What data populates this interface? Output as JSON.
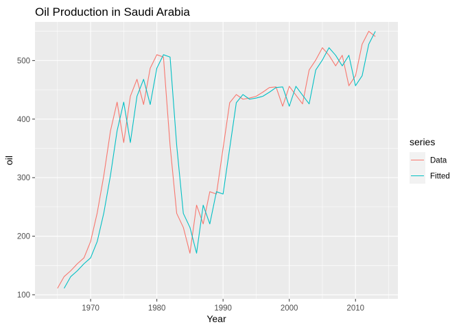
{
  "chart_data": {
    "type": "line",
    "title": "Oil Production in Saudi Arabia",
    "xlabel": "Year",
    "ylabel": "oil",
    "xlim": [
      1961.6,
      2016.4
    ],
    "ylim": [
      93,
      566
    ],
    "x_ticks": [
      1970,
      1980,
      1990,
      2000,
      2010
    ],
    "y_ticks": [
      100,
      200,
      300,
      400,
      500
    ],
    "grid": true,
    "legend": {
      "title": "series",
      "position": "right"
    },
    "series": [
      {
        "name": "Data",
        "color": "#f8766d",
        "x": [
          1965,
          1966,
          1967,
          1968,
          1969,
          1970,
          1971,
          1972,
          1973,
          1974,
          1975,
          1976,
          1977,
          1978,
          1979,
          1980,
          1981,
          1982,
          1983,
          1984,
          1985,
          1986,
          1987,
          1988,
          1989,
          1990,
          1991,
          1992,
          1993,
          1994,
          1995,
          1996,
          1997,
          1998,
          1999,
          2000,
          2001,
          2002,
          2003,
          2004,
          2005,
          2006,
          2007,
          2008,
          2009,
          2010,
          2011,
          2012,
          2013
        ],
        "values": [
          111,
          131,
          141,
          153,
          163,
          191,
          240,
          304,
          380,
          429,
          360,
          439,
          468,
          425,
          487,
          510,
          506,
          355,
          239,
          215,
          171,
          253,
          221,
          276,
          272,
          350,
          428,
          442,
          434,
          436,
          439,
          446,
          454,
          455,
          422,
          456,
          441,
          426,
          484,
          501,
          522,
          509,
          491,
          509,
          457,
          474,
          528,
          550,
          541
        ]
      },
      {
        "name": "Fitted",
        "color": "#00bfc4",
        "x": [
          1966,
          1967,
          1968,
          1969,
          1970,
          1971,
          1972,
          1973,
          1974,
          1975,
          1976,
          1977,
          1978,
          1979,
          1980,
          1981,
          1982,
          1983,
          1984,
          1985,
          1986,
          1987,
          1988,
          1989,
          1990,
          1991,
          1992,
          1993,
          1994,
          1995,
          1996,
          1997,
          1998,
          1999,
          2000,
          2001,
          2002,
          2003,
          2004,
          2005,
          2006,
          2007,
          2008,
          2009,
          2010,
          2011,
          2012,
          2013
        ],
        "values": [
          111,
          131,
          141,
          153,
          163,
          191,
          240,
          304,
          380,
          429,
          360,
          439,
          468,
          425,
          487,
          510,
          506,
          355,
          239,
          215,
          171,
          253,
          221,
          276,
          272,
          350,
          428,
          442,
          434,
          436,
          439,
          446,
          454,
          455,
          422,
          456,
          441,
          426,
          484,
          501,
          522,
          509,
          491,
          509,
          457,
          474,
          528,
          550
        ]
      }
    ]
  }
}
